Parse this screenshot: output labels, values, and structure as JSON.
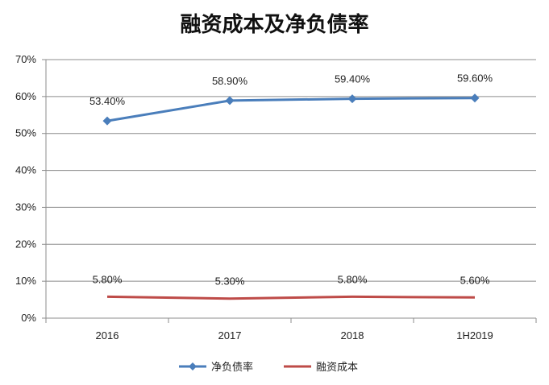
{
  "chart_data": {
    "type": "line",
    "title": "融资成本及净负债率",
    "categories": [
      "2016",
      "2017",
      "2018",
      "1H2019"
    ],
    "ylim": [
      0,
      70
    ],
    "yticks": [
      "0%",
      "10%",
      "20%",
      "30%",
      "40%",
      "50%",
      "60%",
      "70%"
    ],
    "y_unit": "%",
    "grid": true,
    "legend_position": "bottom",
    "series": [
      {
        "name": "净负债率",
        "values": [
          53.4,
          58.9,
          59.4,
          59.6
        ],
        "labels": [
          "53.40%",
          "58.90%",
          "59.40%",
          "59.60%"
        ],
        "color": "#4a7ebb",
        "marker": "diamond"
      },
      {
        "name": "融资成本",
        "values": [
          5.8,
          5.3,
          5.8,
          5.6
        ],
        "labels": [
          "5.80%",
          "5.30%",
          "5.80%",
          "5.60%"
        ],
        "color": "#be4b48",
        "marker": "none"
      }
    ]
  }
}
